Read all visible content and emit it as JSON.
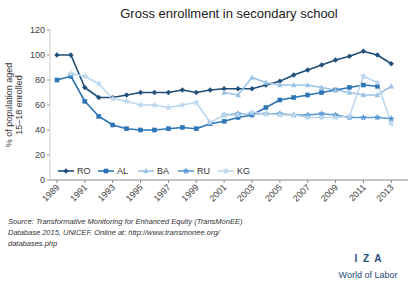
{
  "chart_data": {
    "type": "line",
    "title": "Gross enrollment in secondary school",
    "ylabel": "% of population aged\n15–18 enrolled",
    "x": [
      1989,
      1990,
      1991,
      1992,
      1993,
      1994,
      1995,
      1996,
      1997,
      1998,
      1999,
      2000,
      2001,
      2002,
      2003,
      2004,
      2005,
      2006,
      2007,
      2008,
      2009,
      2010,
      2011,
      2012,
      2013
    ],
    "xlim": [
      1988.5,
      2014.2
    ],
    "xticks": [
      1989,
      1991,
      1993,
      1995,
      1997,
      1999,
      2001,
      2003,
      2005,
      2007,
      2009,
      2011,
      2013
    ],
    "ylim": [
      0,
      120
    ],
    "yticks": [
      0,
      20,
      40,
      60,
      80,
      100,
      120
    ],
    "grid": false,
    "legend": "lower left",
    "series": [
      {
        "name": "RO",
        "color": "#1F4E79",
        "marker": "diamond",
        "values": [
          100,
          100,
          74,
          66,
          66,
          68,
          70,
          70,
          70,
          72,
          70,
          72,
          73,
          73,
          73,
          76,
          79,
          84,
          88,
          92,
          96,
          99,
          103,
          100,
          93
        ]
      },
      {
        "name": "AL",
        "color": "#2E75B6",
        "marker": "square",
        "values": [
          80,
          83,
          63,
          51,
          44,
          41,
          40,
          40,
          41,
          42,
          41,
          45,
          47,
          50,
          52,
          58,
          64,
          66,
          68,
          70,
          72,
          74,
          76,
          75,
          null
        ]
      },
      {
        "name": "BA",
        "color": "#9DC3E6",
        "marker": "triangle",
        "values": [
          null,
          null,
          null,
          null,
          null,
          null,
          null,
          null,
          null,
          null,
          null,
          null,
          70,
          68,
          82,
          78,
          76,
          76,
          76,
          74,
          72,
          70,
          68,
          68,
          75
        ]
      },
      {
        "name": "RU",
        "color": "#5B9BD5",
        "marker": "star",
        "values": [
          null,
          null,
          null,
          null,
          null,
          null,
          null,
          null,
          null,
          null,
          null,
          null,
          52,
          53,
          53,
          53,
          53,
          52,
          52,
          53,
          52,
          50,
          50,
          50,
          49
        ]
      },
      {
        "name": "KG",
        "color": "#BDD7EE",
        "marker": "star",
        "values": [
          null,
          85,
          83,
          77,
          65,
          63,
          60,
          60,
          58,
          60,
          62,
          46,
          52,
          52,
          54,
          53,
          52,
          52,
          50,
          50,
          50,
          51,
          83,
          78,
          45
        ]
      }
    ],
    "annotations": [
      "Source: Transformative Monitoring for Enhanced Equity (TransMonEE)",
      "Database 2015, UNICEF. Online at: http://www.transmonee.org/",
      "databases.php",
      "I  Z  A",
      "World of Labor"
    ]
  }
}
